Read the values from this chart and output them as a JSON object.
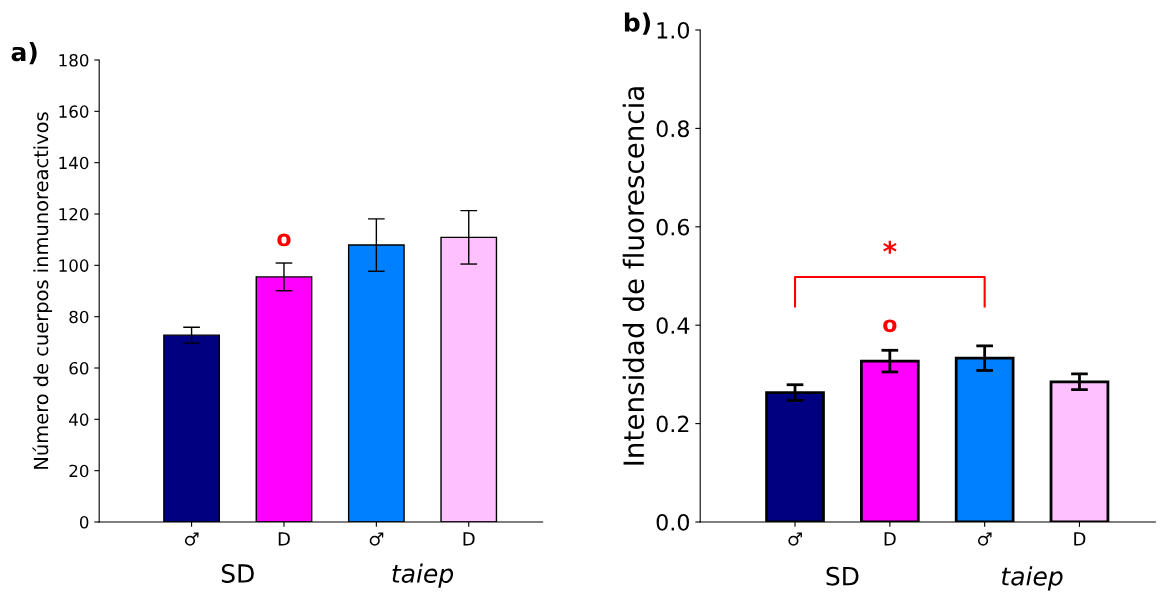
{
  "chart_data": [
    {
      "type": "bar",
      "title": "a)",
      "ylabel": "Número de cuerpos inmunoreactivos",
      "categories": [
        "♂",
        "D",
        "♂",
        "D"
      ],
      "values": [
        72.8,
        95.5,
        107.9,
        110.9
      ],
      "errors": [
        3.1,
        5.4,
        10.2,
        10.4
      ],
      "colors": [
        "#000080",
        "#ff00ff",
        "#0080ff",
        "#ffc0ff"
      ],
      "ylim": [
        0,
        180
      ],
      "yticks": [
        0,
        20,
        40,
        60,
        80,
        100,
        120,
        140,
        160,
        180
      ],
      "grid": false,
      "legend": false,
      "annotations": [
        "o",
        "SD",
        "taiep"
      ]
    },
    {
      "type": "bar",
      "title": "b)",
      "ylabel": "Intensidad de fluorescencia",
      "categories": [
        "♂",
        "D",
        "♂",
        "D"
      ],
      "values": [
        0.263,
        0.327,
        0.333,
        0.285
      ],
      "errors": [
        0.016,
        0.022,
        0.025,
        0.016
      ],
      "colors": [
        "#000080",
        "#ff00ff",
        "#0080ff",
        "#ffc0ff"
      ],
      "ylim": [
        0,
        1
      ],
      "yticks": [
        {
          "value": 0,
          "label": "0.0"
        },
        0.2,
        0.4,
        0.6,
        0.8,
        {
          "value": 1,
          "label": "1.0"
        }
      ],
      "grid": false,
      "legend": false,
      "annotations": [
        "o",
        "*",
        "SD",
        "taiep"
      ]
    }
  ]
}
